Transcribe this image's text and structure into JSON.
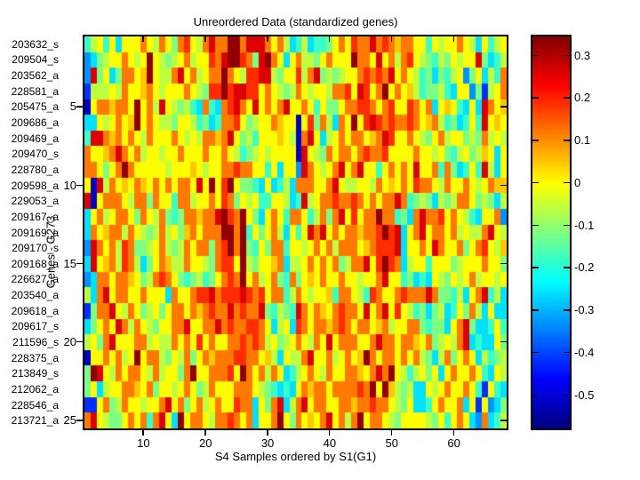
{
  "figure": {
    "background": "#ffffff"
  },
  "chart_data": {
    "type": "heatmap",
    "title": "Unreordered Data (standardized genes)",
    "xlabel": "S4 Samples ordered by S1(G1)",
    "ylabel": "Genes - G273",
    "n_rows": 25,
    "n_cols": 68,
    "row_labels": [
      "203632_s",
      "209504_s",
      "203562_a",
      "228581_a",
      "205475_a",
      "209686_a",
      "209469_a",
      "209470_s",
      "228780_a",
      "209598_a",
      "229053_a",
      "209167_a",
      "209169_a",
      "209170_s",
      "209168_a",
      "226627_a",
      "203540_a",
      "209618_a",
      "209617_s",
      "211596_s",
      "228375_a",
      "213849_s",
      "212062_a",
      "228546_a",
      "213721_a"
    ],
    "x_ticks": [
      10,
      20,
      30,
      40,
      50,
      60
    ],
    "y_ticks": [
      5,
      10,
      15,
      20,
      25
    ],
    "colormap": "jet",
    "vmin": -0.578,
    "vmax": 0.345,
    "colorbar_ticks": [
      0.3,
      0.2,
      0.1,
      0,
      -0.1,
      -0.2,
      -0.3,
      -0.4,
      -0.5
    ],
    "value_code_map": {
      "B": -0.52,
      "b": -0.42,
      "A": -0.33,
      "c": -0.26,
      "t": -0.18,
      "g": -0.12,
      "l": -0.06,
      "y": 0.0,
      "n": 0.05,
      "o": 0.12,
      "O": 0.19,
      "r": 0.26,
      "R": 0.33
    },
    "rows_coded": [
      "tlytycyyyoyloygoOylorooRRorrroyolctlcttgyoyOooroOonooyytylyyoylcytly",
      "AcglyyoylyRylglyolyyOorRROogrRoycyollgyoyyyRooyryoloOylgtlgylyyrgctl",
      "ArgycgooynRylloryolyooRoylOOrrlgyyOlorglglyyoOoOoryoyltgcgtlyAgyclto",
      "blllyloyynoylyyyoylgOOROrrOOyoylgloylyylooOyrOyoRyoynltggltcyyAgblyo",
      "ByoonooyRyolrylgltcotcoOroyryoyoryyoytyggyooOOoyoOyyOoyocynytcycroyn",
      "ccylyoynRyoyllgyyltgctooOyglyyonyyByOgolcoyRyOrOoOooOoynoltgctytryny",
      "trronoyoyloyyyoylyloonorygltyyynylBoryclyoyooynorOyyoylgyolyyglgolyl",
      "oyynoroyolyylyyoyyyoyyoyltglylyyyyBrylgoyooyoOooOyyyyoyylygtlyglnycy",
      "ooygyoRoyyyyylyyynylyyooOooyytycyyAroylyoryoryytyoyoyryyotogctytrlcy",
      "yBrloynyonyoyoyooyryRyORyggtcyctlcoooyyoryllyyloynyoyOooyloyyoylyonn",
      "rByoooyloogoyytoolyyoyOogylyttyylctrlyooOooOoyoyoorotglgclglooyglgcl",
      "cyolyooygoylogtgoonoorROoRygcyoytooytlogoryOyooRootgcorooOyoyltcyyoA",
      "coynooloylglolygnoyoooRRoRtygyolcytyroryoyoonooOROrcyoryooyolylloryl",
      "AroyolOogglyolgloyoogoORoRgtygootyylyoyoloooynoOOOrcyyoyroyyogyoOyln",
      "crynolOolcgyonlloyylgoOOyRlgyynocllyoyoyoglooryOROoclyytyyyglyyyoyyg",
      "AcooyoonygloOoygtgltgyoOoRyolyogtogynyoyyoyylyyoryytgctcylgylyolyyly",
      "lcoryooyyoyyycoyyoOOroOOOrOoOyootloylyyntooyltOoyyoOoooroggtlcyortlc",
      "bgooryloyglygyooyonoOooroOoorgtlgtroyonyoOooyryoryOyltgcglctygolcycc",
      "cgyoyroloylgyyooryyooroOooOOoyclycOoyoonoOoyooynolyyoogtggcyorgcctyt",
      "lygoryyyoolylloyoyOyoyyooOoOolyglyoyloyryoooyyorooyoonyoglylorctccyg",
      "ByyoyolyRyoolgylogyonoooOOooynlcylloryyolyoynRoyooyoyolgclogyoycltgl",
      "gRryloyooylolyygoRyyoooOyRoyoloyctlyoyloyyoonyoroRyltlygycyoyyoytcyl",
      "gyclyyoonyogyylyoygloyyyoooylgtctcyonooyooooOoRyRnlglccylyoyyoytbytc",
      "bbyogloyylyyoryogyolyoyyOoocygorcloryooyyoonooOooylgycctyoyyocybyAcg",
      "orylggyoyotorycRyooylooOoyocyyoRygoynyoryoloRyooylgyyyylgytyoycAoctl"
    ]
  }
}
